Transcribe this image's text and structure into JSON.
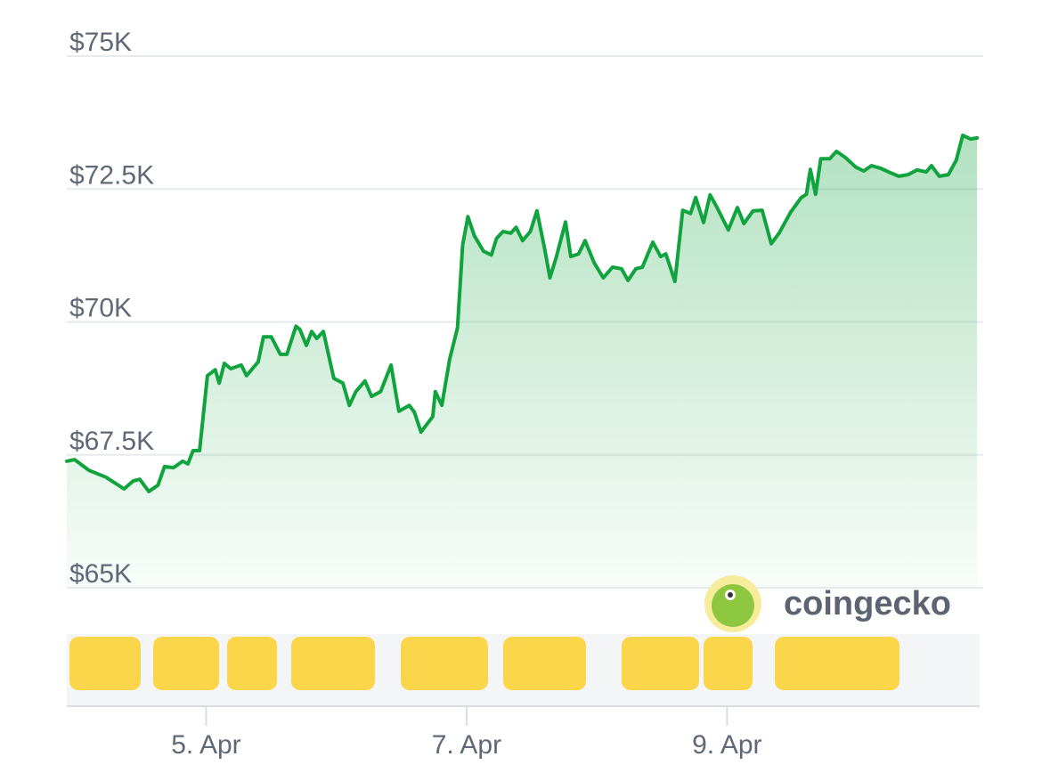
{
  "chart_data": {
    "type": "line",
    "color": "#11a33e",
    "watermark": "coingecko",
    "x": [
      3.93,
      3.99,
      4.1,
      4.23,
      4.37,
      4.44,
      4.49,
      4.56,
      4.63,
      4.68,
      4.75,
      4.82,
      4.86,
      4.9,
      4.95,
      5.01,
      5.07,
      5.1,
      5.14,
      5.19,
      5.27,
      5.31,
      5.4,
      5.44,
      5.5,
      5.57,
      5.62,
      5.69,
      5.72,
      5.77,
      5.81,
      5.85,
      5.9,
      5.98,
      6.05,
      6.1,
      6.15,
      6.22,
      6.27,
      6.34,
      6.42,
      6.48,
      6.56,
      6.6,
      6.65,
      6.74,
      6.76,
      6.81,
      6.87,
      6.93,
      6.97,
      7.01,
      7.06,
      7.13,
      7.19,
      7.23,
      7.28,
      7.34,
      7.38,
      7.43,
      7.49,
      7.54,
      7.6,
      7.64,
      7.69,
      7.76,
      7.8,
      7.86,
      7.91,
      7.98,
      8.05,
      8.12,
      8.19,
      8.24,
      8.3,
      8.35,
      8.43,
      8.49,
      8.53,
      8.56,
      8.6,
      8.66,
      8.72,
      8.76,
      8.82,
      8.87,
      8.92,
      9.01,
      9.08,
      9.13,
      9.2,
      9.27,
      9.34,
      9.4,
      9.49,
      9.57,
      9.61,
      9.64,
      9.68,
      9.72,
      9.79,
      9.84,
      9.91,
      9.99,
      10.05,
      10.11,
      10.18,
      10.25,
      10.32,
      10.39,
      10.46,
      10.53,
      10.57,
      10.63,
      10.7,
      10.76,
      10.81,
      10.87,
      10.92
    ],
    "values": [
      67380,
      67410,
      67210,
      67080,
      66860,
      67010,
      67040,
      66810,
      66930,
      67280,
      67260,
      67380,
      67330,
      67580,
      67580,
      68990,
      69100,
      68850,
      69220,
      69120,
      69190,
      68990,
      69250,
      69720,
      69720,
      69390,
      69390,
      69920,
      69860,
      69560,
      69820,
      69690,
      69820,
      68940,
      68850,
      68430,
      68690,
      68890,
      68600,
      68690,
      69190,
      68320,
      68430,
      68300,
      67930,
      68220,
      68690,
      68430,
      69300,
      69890,
      71450,
      71980,
      71620,
      71330,
      71260,
      71570,
      71700,
      71670,
      71780,
      71530,
      71700,
      72090,
      71370,
      70830,
      71230,
      71880,
      71230,
      71280,
      71530,
      71110,
      70830,
      71030,
      71000,
      70780,
      71000,
      71030,
      71500,
      71230,
      71280,
      71060,
      70760,
      72100,
      72040,
      72340,
      71870,
      72390,
      72170,
      71730,
      72150,
      71850,
      72090,
      72100,
      71470,
      71670,
      72070,
      72340,
      72400,
      72870,
      72400,
      73070,
      73070,
      73210,
      73090,
      72910,
      72840,
      72940,
      72890,
      72810,
      72740,
      72770,
      72860,
      72820,
      72940,
      72740,
      72770,
      73040,
      73510,
      73440,
      73460
    ],
    "xlim": [
      3.93,
      10.94
    ],
    "xticks": [
      {
        "value": 5,
        "label": "5. Apr"
      },
      {
        "value": 7,
        "label": "7. Apr"
      },
      {
        "value": 9,
        "label": "9. Apr"
      }
    ],
    "ylim": [
      65000,
      75000
    ],
    "yticks": [
      {
        "value": 65000,
        "label": "$65K"
      },
      {
        "value": 67500,
        "label": "$67.5K"
      },
      {
        "value": 70000,
        "label": "$70K"
      },
      {
        "value": 72500,
        "label": "$72.5K"
      },
      {
        "value": 75000,
        "label": "$75K"
      }
    ],
    "grid": true
  }
}
